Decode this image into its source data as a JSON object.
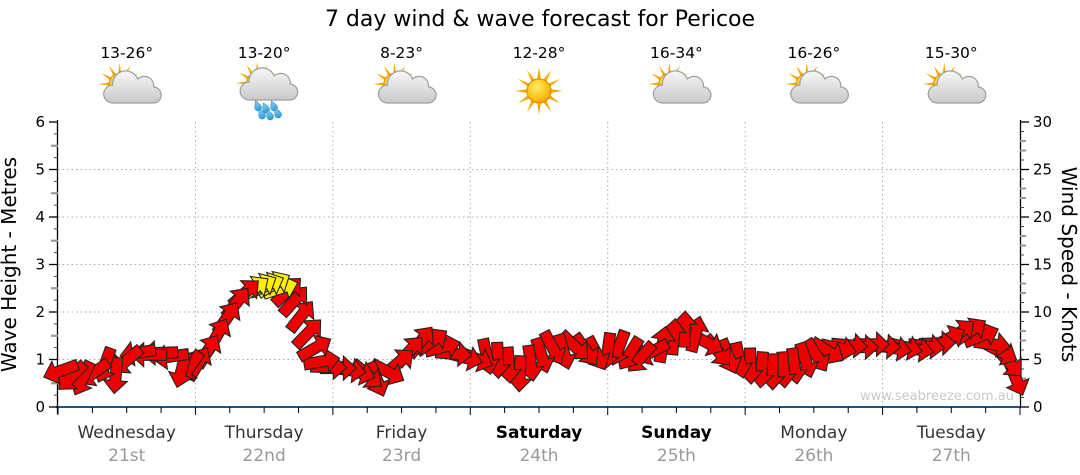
{
  "title": "7 day wind & wave forecast for Pericoe",
  "watermark": "www.seabreeze.com.au",
  "axes": {
    "left_label": "Wave Height - Metres",
    "right_label": "Wind Speed - Knots",
    "left_ticks": [
      0,
      1,
      2,
      3,
      4,
      5,
      6
    ],
    "right_ticks": [
      0,
      5,
      10,
      15,
      20,
      25,
      30
    ]
  },
  "days": [
    {
      "name": "Wednesday",
      "date": "21st",
      "temp": "13-26°",
      "icon": "partly-cloudy",
      "weekend": false
    },
    {
      "name": "Thursday",
      "date": "22nd",
      "temp": "13-20°",
      "icon": "showers",
      "weekend": false
    },
    {
      "name": "Friday",
      "date": "23rd",
      "temp": "8-23°",
      "icon": "partly-cloudy",
      "weekend": false
    },
    {
      "name": "Saturday",
      "date": "24th",
      "temp": "12-28°",
      "icon": "sunny",
      "weekend": true
    },
    {
      "name": "Sunday",
      "date": "25th",
      "temp": "16-34°",
      "icon": "partly-cloudy",
      "weekend": true
    },
    {
      "name": "Monday",
      "date": "26th",
      "temp": "16-26°",
      "icon": "partly-cloudy",
      "weekend": false
    },
    {
      "name": "Tuesday",
      "date": "27th",
      "temp": "15-30°",
      "icon": "partly-cloudy",
      "weekend": false
    }
  ],
  "chart_data": {
    "type": "wind-arrow-series",
    "title": "7 day wind & wave forecast for Pericoe",
    "x_unit": "days from start (Wednesday 21st) , 0-7",
    "y_left": {
      "label": "Wave Height - Metres",
      "range": [
        0,
        6
      ],
      "major_step": 1
    },
    "y_right": {
      "label": "Wind Speed - Knots",
      "range": [
        0,
        30
      ],
      "major_step": 5
    },
    "grid": {
      "horizontal_at_metres": [
        1,
        2,
        3,
        4,
        5
      ],
      "vertical_at_day_boundaries": [
        1,
        2,
        3,
        4,
        5,
        6
      ],
      "style": "dotted"
    },
    "legend": "arrow color: red = normal wind, yellow = strongest wind around Thursday midday peak (~13 knots); arrow rotation = wind direction",
    "colors": {
      "arrow_normal": "#EE0000",
      "arrow_strong": "#FFF100",
      "arrow_outline": "#222222",
      "bottom_axis": "#1A5488",
      "grid": "#ABABAB",
      "date_text": "#999999",
      "day_text": "#333333",
      "watermark_text": "#C8C8C8"
    },
    "points_format": [
      "t_days",
      "wind_knots",
      "direction_deg_cw_from_up",
      "color r|y"
    ],
    "points": [
      [
        0.02,
        3.8,
        250,
        "r"
      ],
      [
        0.1,
        3.2,
        225,
        "r"
      ],
      [
        0.18,
        3.0,
        205,
        "r"
      ],
      [
        0.26,
        3.6,
        235,
        "r"
      ],
      [
        0.34,
        4.4,
        200,
        "r"
      ],
      [
        0.42,
        3.3,
        185,
        "r"
      ],
      [
        0.5,
        4.9,
        230,
        "r"
      ],
      [
        0.58,
        5.7,
        260,
        "r"
      ],
      [
        0.66,
        5.5,
        270,
        "r"
      ],
      [
        0.74,
        5.7,
        268,
        "r"
      ],
      [
        0.82,
        5.3,
        262,
        "r"
      ],
      [
        0.9,
        3.9,
        195,
        "r"
      ],
      [
        0.96,
        4.2,
        215,
        "r"
      ],
      [
        1.02,
        4.6,
        30,
        "r"
      ],
      [
        1.09,
        5.9,
        32,
        "r"
      ],
      [
        1.16,
        7.6,
        30,
        "r"
      ],
      [
        1.23,
        9.4,
        34,
        "r"
      ],
      [
        1.3,
        11.0,
        38,
        "r"
      ],
      [
        1.36,
        12.0,
        48,
        "r"
      ],
      [
        1.42,
        12.4,
        55,
        "y"
      ],
      [
        1.47,
        12.7,
        62,
        "y"
      ],
      [
        1.52,
        12.8,
        66,
        "y"
      ],
      [
        1.57,
        12.9,
        60,
        "y"
      ],
      [
        1.62,
        12.5,
        72,
        "y"
      ],
      [
        1.67,
        12.2,
        46,
        "r"
      ],
      [
        1.72,
        11.2,
        42,
        "r"
      ],
      [
        1.77,
        9.6,
        38,
        "r"
      ],
      [
        1.82,
        7.8,
        44,
        "r"
      ],
      [
        1.87,
        6.2,
        60,
        "r"
      ],
      [
        1.92,
        4.8,
        80,
        "r"
      ],
      [
        1.97,
        4.2,
        92,
        "r"
      ],
      [
        2.04,
        4.1,
        90,
        "r"
      ],
      [
        2.11,
        3.9,
        98,
        "r"
      ],
      [
        2.18,
        3.7,
        108,
        "r"
      ],
      [
        2.25,
        3.4,
        130,
        "r"
      ],
      [
        2.32,
        2.9,
        158,
        "r"
      ],
      [
        2.4,
        3.7,
        118,
        "r"
      ],
      [
        2.48,
        4.7,
        50,
        "r"
      ],
      [
        2.56,
        5.9,
        42,
        "r"
      ],
      [
        2.64,
        6.9,
        38,
        "r"
      ],
      [
        2.72,
        6.9,
        55,
        "r"
      ],
      [
        2.8,
        6.3,
        75,
        "r"
      ],
      [
        2.88,
        5.6,
        95,
        "r"
      ],
      [
        2.96,
        5.2,
        105,
        "r"
      ],
      [
        3.04,
        5.1,
        112,
        "r"
      ],
      [
        3.12,
        5.3,
        168,
        "r"
      ],
      [
        3.2,
        4.9,
        178,
        "r"
      ],
      [
        3.28,
        4.4,
        176,
        "r"
      ],
      [
        3.36,
        3.5,
        182,
        "r"
      ],
      [
        3.44,
        4.6,
        172,
        "r"
      ],
      [
        3.52,
        5.4,
        162,
        "r"
      ],
      [
        3.6,
        6.2,
        152,
        "r"
      ],
      [
        3.68,
        5.8,
        164,
        "r"
      ],
      [
        3.76,
        6.4,
        134,
        "r"
      ],
      [
        3.84,
        6.0,
        144,
        "r"
      ],
      [
        3.92,
        5.6,
        152,
        "r"
      ],
      [
        4.0,
        5.9,
        188,
        "r"
      ],
      [
        4.08,
        6.2,
        200,
        "r"
      ],
      [
        4.16,
        5.6,
        212,
        "r"
      ],
      [
        4.24,
        5.2,
        222,
        "r"
      ],
      [
        4.32,
        5.8,
        242,
        "r"
      ],
      [
        4.4,
        6.6,
        10,
        "r"
      ],
      [
        4.48,
        7.4,
        5,
        "r"
      ],
      [
        4.56,
        8.2,
        2,
        "r"
      ],
      [
        4.64,
        7.7,
        14,
        "r"
      ],
      [
        4.72,
        6.8,
        118,
        "r"
      ],
      [
        4.8,
        5.9,
        140,
        "r"
      ],
      [
        4.88,
        5.3,
        158,
        "r"
      ],
      [
        4.96,
        4.9,
        168,
        "r"
      ],
      [
        5.04,
        4.3,
        178,
        "r"
      ],
      [
        5.12,
        3.9,
        184,
        "r"
      ],
      [
        5.2,
        3.7,
        180,
        "r"
      ],
      [
        5.28,
        3.9,
        176,
        "r"
      ],
      [
        5.36,
        4.3,
        172,
        "r"
      ],
      [
        5.44,
        4.9,
        162,
        "r"
      ],
      [
        5.52,
        5.4,
        148,
        "r"
      ],
      [
        5.6,
        5.9,
        122,
        "r"
      ],
      [
        5.68,
        6.2,
        102,
        "r"
      ],
      [
        5.76,
        6.5,
        95,
        "r"
      ],
      [
        5.84,
        6.3,
        90,
        "r"
      ],
      [
        5.92,
        6.6,
        90,
        "r"
      ],
      [
        6.0,
        6.4,
        94,
        "r"
      ],
      [
        6.08,
        6.2,
        100,
        "r"
      ],
      [
        6.16,
        6.3,
        104,
        "r"
      ],
      [
        6.24,
        6.1,
        100,
        "r"
      ],
      [
        6.32,
        6.4,
        96,
        "r"
      ],
      [
        6.4,
        6.7,
        88,
        "r"
      ],
      [
        6.48,
        7.2,
        62,
        "r"
      ],
      [
        6.56,
        7.8,
        52,
        "r"
      ],
      [
        6.64,
        8.0,
        56,
        "r"
      ],
      [
        6.72,
        7.5,
        68,
        "r"
      ],
      [
        6.8,
        6.6,
        98,
        "r"
      ],
      [
        6.86,
        5.8,
        118,
        "r"
      ],
      [
        6.92,
        4.7,
        138,
        "r"
      ],
      [
        6.97,
        3.0,
        158,
        "r"
      ]
    ]
  }
}
